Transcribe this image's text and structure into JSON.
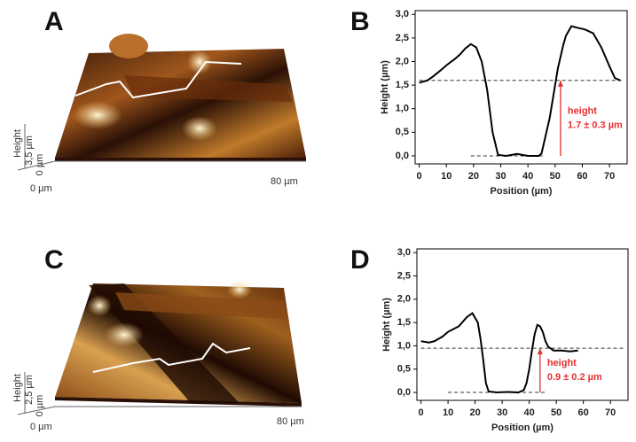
{
  "afm_images": [
    {
      "label": "A",
      "x_start": "0 µm",
      "x_end": "80 µm",
      "z_max": "3,5 µm",
      "z_min": "0 µm",
      "z_axis": "Height"
    },
    {
      "label": "C",
      "x_start": "0 µm",
      "x_end": "80 µm",
      "z_max": "2,5 µm",
      "z_min": "0 µm",
      "z_axis": "Height"
    }
  ],
  "chart_data": [
    {
      "type": "line",
      "label": "B",
      "xlabel": "Position (µm)",
      "ylabel": "Height (µm)",
      "x": [
        0,
        3,
        5,
        8,
        10,
        13,
        15,
        17,
        19,
        21,
        23,
        25,
        27,
        29,
        32,
        36,
        40,
        44,
        45,
        46,
        48,
        50,
        51,
        53,
        54,
        56,
        58,
        61,
        64,
        67,
        70,
        72,
        74
      ],
      "series": [
        {
          "color": "#000000",
          "values": [
            1.55,
            1.6,
            1.68,
            1.82,
            1.92,
            2.05,
            2.15,
            2.28,
            2.37,
            2.3,
            2.0,
            1.4,
            0.5,
            0.02,
            0.0,
            0.04,
            0.0,
            0.0,
            0.05,
            0.3,
            0.8,
            1.5,
            1.85,
            2.35,
            2.55,
            2.75,
            2.72,
            2.68,
            2.6,
            2.3,
            1.9,
            1.65,
            1.6
          ]
        }
      ],
      "xlim": [
        -1.5,
        76.5
      ],
      "ylim": [
        -0.17,
        3.08
      ],
      "xticks": [
        0,
        10,
        20,
        30,
        40,
        50,
        60,
        70
      ],
      "yticks": [
        {
          "value": 0,
          "label": "0,0"
        },
        {
          "value": 0.5,
          "label": "0,5"
        },
        {
          "value": 1,
          "label": "1,0"
        },
        {
          "value": 1.5,
          "label": "1,5"
        },
        {
          "value": 2,
          "label": "2,0"
        },
        {
          "value": 2.5,
          "label": "2,5"
        },
        {
          "value": 3,
          "label": "3,0"
        }
      ],
      "reference_lines": [
        {
          "y": 1.6,
          "x": [
            0,
            75
          ]
        },
        {
          "y": 0,
          "x": [
            19,
            46
          ]
        }
      ],
      "arrow": {
        "x": 52,
        "y": [
          0,
          1.6
        ],
        "color": "#e53030"
      },
      "annotation": [
        "height",
        "1.7 ± 0.3 µm"
      ]
    },
    {
      "type": "line",
      "label": "D",
      "xlabel": "Position (µm)",
      "ylabel": "Height (µm)",
      "x": [
        0,
        3,
        5,
        8,
        10,
        14,
        17,
        19,
        21,
        22,
        23,
        24,
        25,
        28,
        32,
        36,
        38,
        39,
        40,
        41,
        42,
        43,
        44,
        45,
        46,
        47,
        49,
        52,
        55,
        58
      ],
      "series": [
        {
          "color": "#000000",
          "values": [
            1.1,
            1.07,
            1.1,
            1.2,
            1.3,
            1.42,
            1.62,
            1.7,
            1.5,
            1.15,
            0.7,
            0.2,
            0.02,
            0.0,
            0.01,
            0.0,
            0.05,
            0.2,
            0.5,
            0.9,
            1.25,
            1.45,
            1.42,
            1.3,
            1.1,
            0.98,
            0.9,
            0.9,
            0.88,
            0.9
          ]
        }
      ],
      "xlim": [
        -1.5,
        76.5
      ],
      "ylim": [
        -0.17,
        3.08
      ],
      "xticks": [
        0,
        10,
        20,
        30,
        40,
        50,
        60,
        70
      ],
      "yticks": [
        {
          "value": 0,
          "label": "0,0"
        },
        {
          "value": 0.5,
          "label": "0,5"
        },
        {
          "value": 1,
          "label": "1,0"
        },
        {
          "value": 1.5,
          "label": "1,5"
        },
        {
          "value": 2,
          "label": "2,0"
        },
        {
          "value": 2.5,
          "label": "2,5"
        },
        {
          "value": 3,
          "label": "3,0"
        }
      ],
      "reference_lines": [
        {
          "y": 0.95,
          "x": [
            0,
            75
          ]
        },
        {
          "y": 0,
          "x": [
            10,
            46
          ]
        }
      ],
      "arrow": {
        "x": 44,
        "y": [
          0,
          0.95
        ],
        "color": "#e53030"
      },
      "annotation": [
        "height",
        "0.9 ± 0.2 µm"
      ]
    }
  ]
}
